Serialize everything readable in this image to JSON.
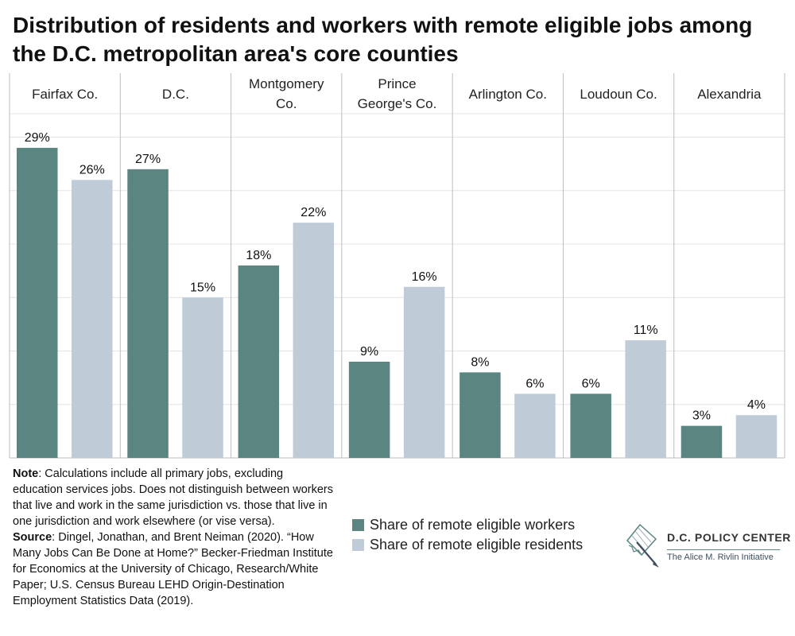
{
  "title": "Distribution of residents and workers with remote eligible jobs among the D.C. metropolitan area's core counties",
  "chart_data": {
    "type": "bar",
    "categories": [
      [
        "Fairfax Co."
      ],
      [
        "D.C."
      ],
      [
        "Montgomery",
        "Co."
      ],
      [
        "Prince",
        "George's Co."
      ],
      [
        "Arlington Co."
      ],
      [
        "Loudoun Co."
      ],
      [
        "Alexandria"
      ]
    ],
    "series": [
      {
        "name": "Share of remote eligible workers",
        "color": "#5a8580",
        "values": [
          29,
          27,
          18,
          9,
          8,
          6,
          3
        ],
        "labels": [
          "29%",
          "27%",
          "18%",
          "9%",
          "8%",
          "6%",
          "3%"
        ]
      },
      {
        "name": "Share of remote eligible residents",
        "color": "#bfccd7",
        "values": [
          26,
          15,
          22,
          16,
          6,
          11,
          4
        ],
        "labels": [
          "26%",
          "15%",
          "22%",
          "16%",
          "6%",
          "11%",
          "4%"
        ]
      }
    ],
    "ylim": [
      0,
      32
    ],
    "grid": true,
    "legend": "bottom-center",
    "xlabel": "",
    "ylabel": ""
  },
  "notes": {
    "note_label": "Note",
    "note_text": ": Calculations include all primary jobs, excluding education services jobs. Does not distinguish between workers that live and work in the same jurisdiction vs. those that live in one jurisdiction and work elsewhere (or vise versa).",
    "source_label": "Source",
    "source_text": ": Dingel, Jonathan, and Brent Neiman (2020). “How Many Jobs Can Be Done at Home?” Becker-Friedman Institute for Economics at the University of Chicago, Research/White Paper; U.S. Census Bureau LEHD Origin-Destination Employment Statistics Data (2019)."
  },
  "logo": {
    "name": "D.C. POLICY CENTER",
    "tagline": "The Alice M. Rivlin Initiative",
    "icon": "dc-map-pen-icon"
  },
  "colors": {
    "workers": "#5a8580",
    "residents": "#bfccd7",
    "grid": "#e3e3e3",
    "divider": "#bdbdbd"
  }
}
